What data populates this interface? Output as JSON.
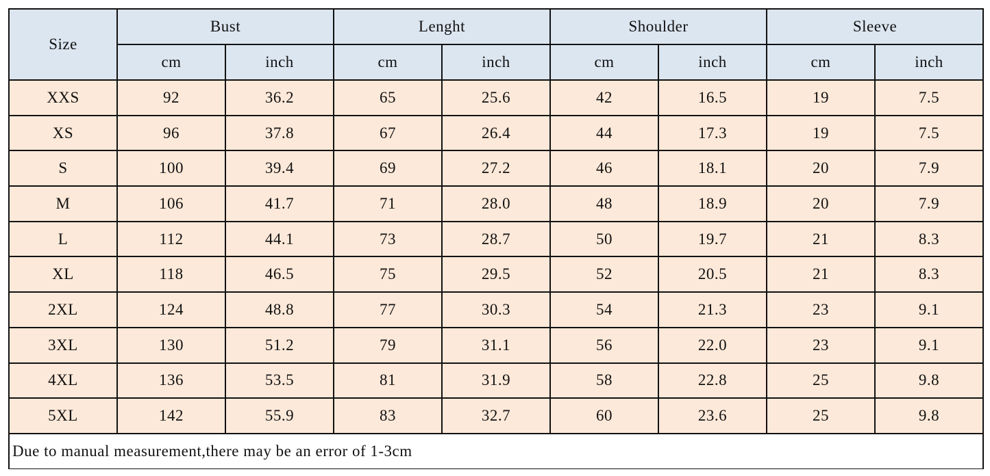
{
  "header": {
    "size_label": "Size",
    "groups": [
      "Bust",
      "Lenght",
      "Shoulder",
      "Sleeve"
    ],
    "units": [
      "cm",
      "inch"
    ]
  },
  "rows": [
    [
      "XXS",
      "92",
      "36.2",
      "65",
      "25.6",
      "42",
      "16.5",
      "19",
      "7.5"
    ],
    [
      "XS",
      "96",
      "37.8",
      "67",
      "26.4",
      "44",
      "17.3",
      "19",
      "7.5"
    ],
    [
      "S",
      "100",
      "39.4",
      "69",
      "27.2",
      "46",
      "18.1",
      "20",
      "7.9"
    ],
    [
      "M",
      "106",
      "41.7",
      "71",
      "28.0",
      "48",
      "18.9",
      "20",
      "7.9"
    ],
    [
      "L",
      "112",
      "44.1",
      "73",
      "28.7",
      "50",
      "19.7",
      "21",
      "8.3"
    ],
    [
      "XL",
      "118",
      "46.5",
      "75",
      "29.5",
      "52",
      "20.5",
      "21",
      "8.3"
    ],
    [
      "2XL",
      "124",
      "48.8",
      "77",
      "30.3",
      "54",
      "21.3",
      "23",
      "9.1"
    ],
    [
      "3XL",
      "130",
      "51.2",
      "79",
      "31.1",
      "56",
      "22.0",
      "23",
      "9.1"
    ],
    [
      "4XL",
      "136",
      "53.5",
      "81",
      "31.9",
      "58",
      "22.8",
      "25",
      "9.8"
    ],
    [
      "5XL",
      "142",
      "55.9",
      "83",
      "32.7",
      "60",
      "23.6",
      "25",
      "9.8"
    ]
  ],
  "note": "Due to manual measurement,there may be an error of 1-3cm",
  "colors": {
    "header_bg": "#dce6f1",
    "body_bg": "#fde9d9",
    "border": "#111111"
  }
}
